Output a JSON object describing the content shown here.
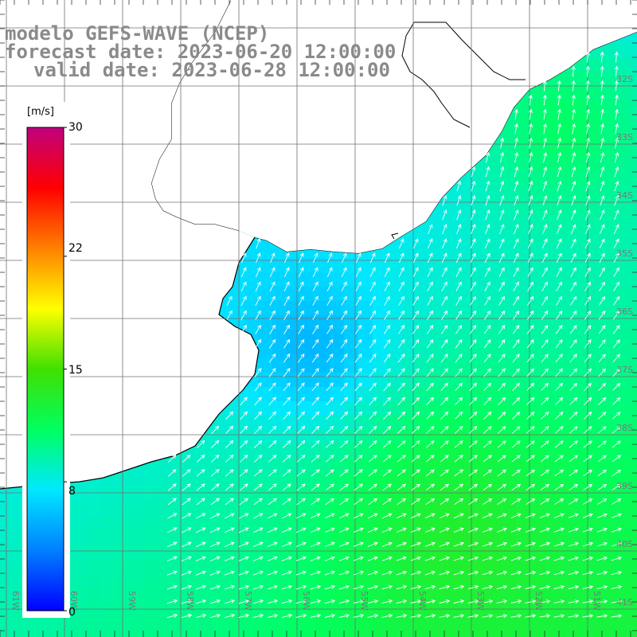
{
  "title": {
    "line1": "modelo GEFS-WAVE (NCEP)",
    "line2": "forecast date: 2023-06-20 12:00:00",
    "line3": "valid date: 2023-06-28 12:00:00"
  },
  "colorbar": {
    "units": "[m/s]",
    "min": 0,
    "max": 30,
    "tick_labels": [
      "30",
      "22",
      "15",
      "8",
      "0"
    ],
    "tick_values": [
      30,
      22,
      15,
      8,
      0
    ],
    "colors": [
      "#0000ff",
      "#0080ff",
      "#00e8ff",
      "#00ff60",
      "#40e000",
      "#ffff00",
      "#ff8000",
      "#ff0000",
      "#c0007f"
    ]
  },
  "map": {
    "lon_labels": [
      "61W",
      "60W",
      "59W",
      "58W",
      "57W",
      "56W",
      "55W",
      "54W",
      "53W",
      "52W",
      "51W"
    ],
    "lat_labels": [
      "32S",
      "33S",
      "34S",
      "35S",
      "36S",
      "37S",
      "38S",
      "39S",
      "40S",
      "41S"
    ],
    "lon_range": [
      -62,
      -50.5
    ],
    "lat_range": [
      -41.5,
      -31
    ],
    "land_color": "#ffffff",
    "grid_color": "#707070",
    "arrow_color": "#ffffff"
  }
}
